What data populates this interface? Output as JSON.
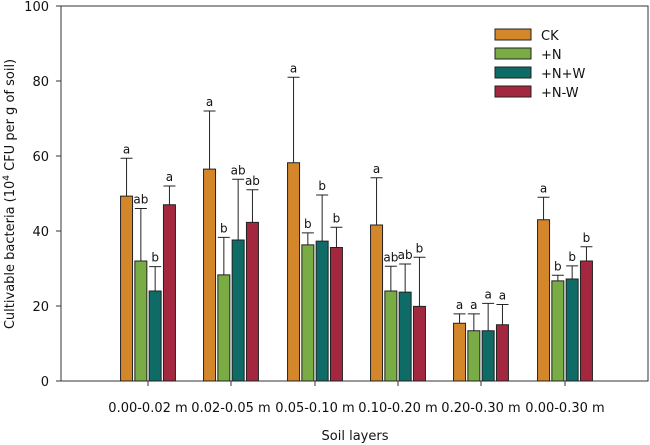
{
  "chart_data": {
    "type": "bar",
    "xlabel": "Soil layers",
    "ylabel": "Cultivable bacteria (10⁴ CFU per g of soil)",
    "ylabel_parts": {
      "pre": "Cultivable bacteria (10",
      "sup": "4",
      "post": " CFU per g of soil)"
    },
    "ylim": [
      0,
      100
    ],
    "yticks": [
      0,
      20,
      40,
      60,
      80,
      100
    ],
    "grid": false,
    "legend_position": "top-right",
    "categories": [
      "0.00-0.02 m",
      "0.02-0.05 m",
      "0.05-0.10 m",
      "0.10-0.20 m",
      "0.20-0.30 m",
      "0.00-0.30 m"
    ],
    "series": [
      {
        "name": "CK",
        "color": "#d4862a",
        "values": [
          49.3,
          56.5,
          58.2,
          41.6,
          15.4,
          43.0
        ],
        "error_top": [
          59.4,
          72.0,
          81.0,
          54.2,
          17.9,
          49.0
        ],
        "letters": [
          "a",
          "a",
          "a",
          "a",
          "a",
          "a"
        ]
      },
      {
        "name": "+N",
        "color": "#79ac44",
        "values": [
          32.0,
          28.3,
          36.3,
          24.0,
          13.4,
          26.7
        ],
        "error_top": [
          46.0,
          38.3,
          39.5,
          30.6,
          17.9,
          28.2
        ],
        "letters": [
          "ab",
          "b",
          "b",
          "ab",
          "a",
          "b"
        ]
      },
      {
        "name": "+N+W",
        "color": "#0e6b66",
        "values": [
          24.0,
          37.6,
          37.3,
          23.7,
          13.4,
          27.2
        ],
        "error_top": [
          30.5,
          53.8,
          49.6,
          31.2,
          20.7,
          30.7
        ],
        "letters": [
          "b",
          "ab",
          "b",
          "ab",
          "a",
          "b"
        ]
      },
      {
        "name": "+N-W",
        "color": "#a3283f",
        "values": [
          47.0,
          42.3,
          35.6,
          19.9,
          15.0,
          32.0
        ],
        "error_top": [
          52.0,
          51.0,
          41.0,
          33.0,
          20.4,
          35.8
        ],
        "letters": [
          "a",
          "ab",
          "b",
          "b",
          "a",
          "b"
        ]
      }
    ]
  }
}
